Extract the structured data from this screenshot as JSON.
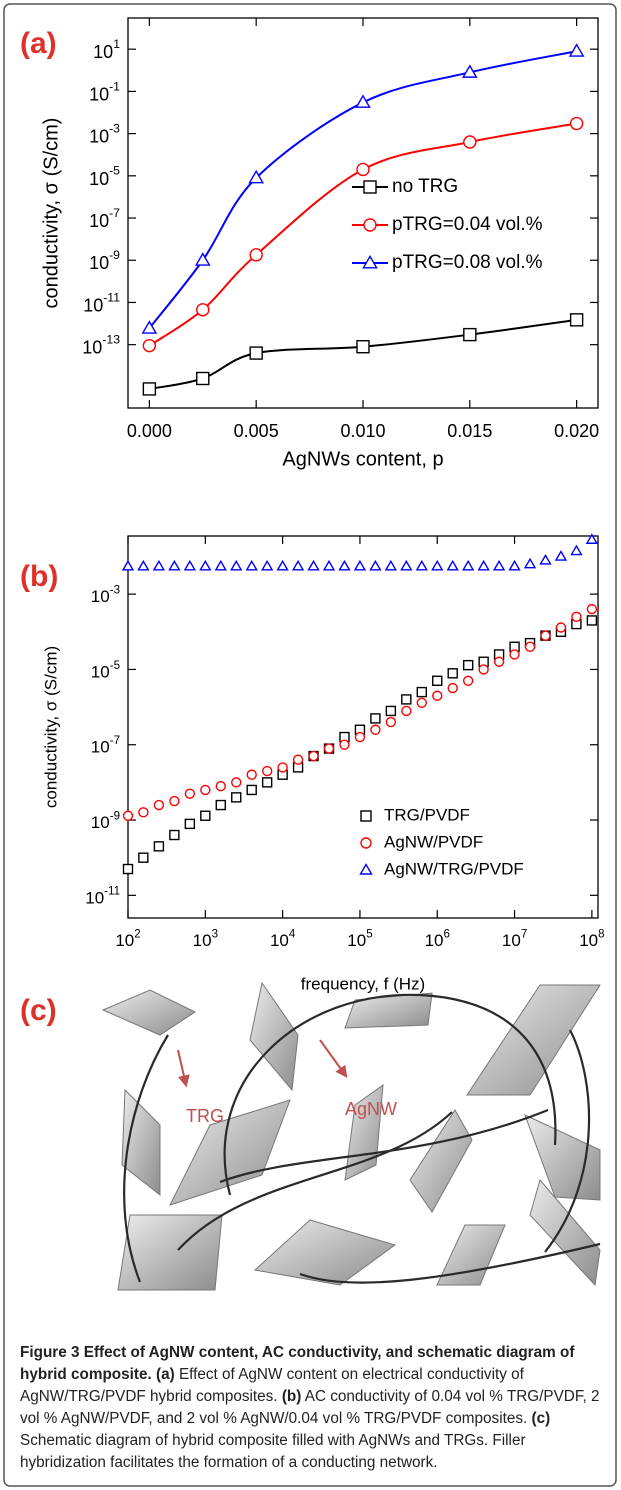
{
  "chart_data": [
    {
      "type": "line",
      "panel_label": "(a)",
      "x_label": "AgNWs content, p",
      "y_label": "conductivity, σ (S/cm)",
      "log_y": true,
      "smooth": true,
      "x": [
        0,
        0.0025,
        0.005,
        0.01,
        0.015,
        0.02
      ],
      "xlim": [
        -0.001,
        0.021
      ],
      "xticks": [
        {
          "value": 0,
          "label": "0.000"
        },
        {
          "value": 0.005,
          "label": "0.005"
        },
        {
          "value": 0.01,
          "label": "0.010"
        },
        {
          "value": 0.015,
          "label": "0.015"
        },
        {
          "value": 0.02,
          "label": "0.020"
        }
      ],
      "ylim": [
        1e-16,
        300
      ],
      "yticks": [
        {
          "value": 10,
          "label": "10",
          "exponent": "1"
        },
        {
          "value": 0.1,
          "label": "10",
          "exponent": "-1"
        },
        {
          "value": 0.001,
          "label": "10",
          "exponent": "-3"
        },
        {
          "value": 1e-05,
          "label": "10",
          "exponent": "-5"
        },
        {
          "value": 1e-07,
          "label": "10",
          "exponent": "-7"
        },
        {
          "value": 1e-09,
          "label": "10",
          "exponent": "-9"
        },
        {
          "value": 1e-11,
          "label": "10",
          "exponent": "-11"
        },
        {
          "value": 1e-13,
          "label": "10",
          "exponent": "-13"
        }
      ],
      "series": [
        {
          "name": "no TRG",
          "color": "#000000",
          "marker": "square",
          "values": [
            8e-16,
            2.5e-15,
            4e-14,
            8e-14,
            3e-13,
            1.5e-12
          ]
        },
        {
          "name": "pTRG=0.04 vol.%",
          "color": "#ff0000",
          "marker": "circle",
          "values": [
            9e-14,
            4.5e-12,
            1.8e-09,
            2e-05,
            0.0004,
            0.003
          ]
        },
        {
          "name": "pTRG=0.08 vol.%",
          "color": "#0000ff",
          "marker": "triangle",
          "values": [
            6e-13,
            1e-09,
            8e-06,
            0.03,
            0.8,
            8
          ]
        }
      ]
    },
    {
      "type": "scatter",
      "panel_label": "(b)",
      "x_label": "frequency, f (Hz)",
      "y_label": "conductivity, σ (S/cm)",
      "log_x": true,
      "log_y": true,
      "smooth": false,
      "x": [
        100,
        158,
        251,
        398,
        631,
        1000,
        1585,
        2512,
        3981,
        6310,
        10000,
        15849,
        25119,
        39811,
        63096,
        100000,
        158489,
        251189,
        398107,
        630957,
        1000000,
        1584893,
        2511886,
        3981072,
        6309573,
        10000000,
        15848932,
        25118864,
        39810717,
        63095734,
        100000000
      ],
      "xlim": [
        100,
        120000000.0
      ],
      "xticks": [
        {
          "value": 100,
          "label": "10",
          "exponent": "2"
        },
        {
          "value": 1000,
          "label": "10",
          "exponent": "3"
        },
        {
          "value": 10000,
          "label": "10",
          "exponent": "4"
        },
        {
          "value": 100000,
          "label": "10",
          "exponent": "5"
        },
        {
          "value": 1000000,
          "label": "10",
          "exponent": "6"
        },
        {
          "value": 10000000,
          "label": "10",
          "exponent": "7"
        },
        {
          "value": 100000000,
          "label": "10",
          "exponent": "8"
        }
      ],
      "ylim": [
        2.5e-12,
        0.035
      ],
      "yticks": [
        {
          "value": 0.001,
          "label": "10",
          "exponent": "-3"
        },
        {
          "value": 1e-05,
          "label": "10",
          "exponent": "-5"
        },
        {
          "value": 1e-07,
          "label": "10",
          "exponent": "-7"
        },
        {
          "value": 1e-09,
          "label": "10",
          "exponent": "-9"
        },
        {
          "value": 1e-11,
          "label": "10",
          "exponent": "-11"
        }
      ],
      "series": [
        {
          "name": "TRG/PVDF",
          "color": "#000000",
          "marker": "square",
          "values": [
            5e-11,
            1e-10,
            2e-10,
            4e-10,
            7.9e-10,
            1.3e-09,
            2.5e-09,
            4e-09,
            6.3e-09,
            1e-08,
            1.6e-08,
            2.5e-08,
            5e-08,
            7.9e-08,
            1.6e-07,
            2.5e-07,
            5e-07,
            7.9e-07,
            1.6e-06,
            2.5e-06,
            5e-06,
            7.9e-06,
            1.3e-05,
            1.6e-05,
            2.5e-05,
            4e-05,
            5e-05,
            7.9e-05,
            0.0001,
            0.00016,
            0.0002
          ]
        },
        {
          "name": "AgNW/PVDF",
          "color": "#ff0000",
          "marker": "circle",
          "values": [
            1.3e-09,
            1.6e-09,
            2.5e-09,
            3.2e-09,
            5e-09,
            6.3e-09,
            7.9e-09,
            1e-08,
            1.6e-08,
            2e-08,
            2.5e-08,
            4e-08,
            5e-08,
            7.9e-08,
            1e-07,
            1.6e-07,
            2.5e-07,
            4e-07,
            7.9e-07,
            1.3e-06,
            2e-06,
            3.2e-06,
            5e-06,
            1e-05,
            1.6e-05,
            2.5e-05,
            4e-05,
            7.9e-05,
            0.00013,
            0.00025,
            0.0004
          ]
        },
        {
          "name": "AgNW/TRG/PVDF",
          "color": "#0000ff",
          "marker": "triangle",
          "values": [
            0.0055,
            0.0055,
            0.0055,
            0.0055,
            0.0055,
            0.0055,
            0.0055,
            0.0055,
            0.0055,
            0.0055,
            0.0055,
            0.0055,
            0.0055,
            0.0055,
            0.0055,
            0.0055,
            0.0055,
            0.0055,
            0.0055,
            0.0055,
            0.0055,
            0.0055,
            0.0055,
            0.0055,
            0.0055,
            0.0055,
            0.0063,
            0.0079,
            0.01,
            0.014,
            0.028
          ]
        }
      ]
    }
  ],
  "diagram": {
    "label": "(c)",
    "annotations": [
      "TRG",
      "AgNW"
    ]
  },
  "caption": [
    {
      "text": "Figure 3 Effect of AgNW content, AC conductivity, and schematic diagram of hybrid composite. ",
      "bold": true
    },
    {
      "text": "(a)",
      "bold": true
    },
    {
      "text": " Effect of AgNW content on electrical conductivity of AgNW/TRG/PVDF hybrid composites. ",
      "bold": false
    },
    {
      "text": "(b)",
      "bold": true
    },
    {
      "text": " AC conductivity of 0.04 vol % TRG/PVDF, 2 vol % AgNW/PVDF, and 2 vol % AgNW/0.04 vol % TRG/PVDF composites. ",
      "bold": false
    },
    {
      "text": "(c)",
      "bold": true
    },
    {
      "text": " Schematic diagram of hybrid composite filled with AgNWs and TRGs. Filler hybridization facilitates the formation of a conducting network.",
      "bold": false
    }
  ]
}
